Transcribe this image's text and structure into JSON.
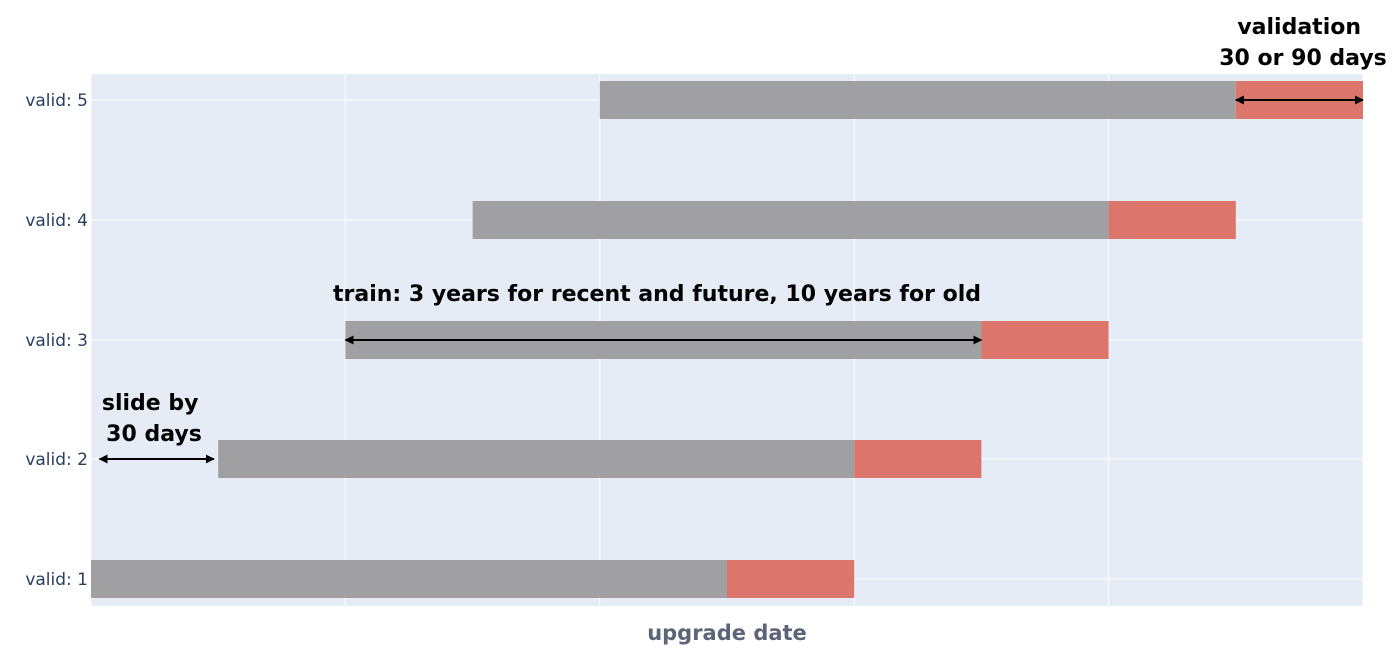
{
  "colors": {
    "background": "#ffffff",
    "plot_bg": "#e5ecf6",
    "grid": "#ffffff",
    "train": "#a0a0a2",
    "validation": "#dc756c",
    "arrow": "#000000",
    "tick_text": "#2a3f5f",
    "axis_title": "#5b6577"
  },
  "chart_data": {
    "type": "bar",
    "orientation": "horizontal",
    "xlabel": "upgrade date",
    "ylabel": "",
    "x_unit": "months",
    "xlim": [
      0,
      60
    ],
    "x_grid": [
      0,
      12,
      24,
      36,
      48,
      60
    ],
    "x_tick_labels_shown": false,
    "grid": true,
    "categories": [
      "valid: 1",
      "valid: 2",
      "valid: 3",
      "valid: 4",
      "valid: 5"
    ],
    "series": [
      {
        "name": "",
        "segment": "train",
        "color": "#a0a0a2",
        "values": [
          {
            "category": "valid: 1",
            "start": 0,
            "end": 30
          },
          {
            "category": "valid: 2",
            "start": 6,
            "end": 36
          },
          {
            "category": "valid: 3",
            "start": 12,
            "end": 42
          },
          {
            "category": "valid: 4",
            "start": 18,
            "end": 48
          },
          {
            "category": "valid: 5",
            "start": 24,
            "end": 54
          }
        ]
      },
      {
        "name": "",
        "segment": "validation",
        "color": "#dc756c",
        "values": [
          {
            "category": "valid: 1",
            "start": 30,
            "end": 36
          },
          {
            "category": "valid: 2",
            "start": 36,
            "end": 42
          },
          {
            "category": "valid: 3",
            "start": 42,
            "end": 48
          },
          {
            "category": "valid: 4",
            "start": 48,
            "end": 54
          },
          {
            "category": "valid: 5",
            "start": 54,
            "end": 60
          }
        ]
      }
    ],
    "annotations": {
      "validation": {
        "lines": [
          "validation",
          "30 or 90 days"
        ],
        "arrow": {
          "category": "valid: 5",
          "from": 54,
          "to": 60
        }
      },
      "train": {
        "lines": [
          "train: 3 years for recent and future, 10 years for old"
        ],
        "arrow": {
          "category": "valid: 3",
          "from": 12,
          "to": 42
        }
      },
      "slide": {
        "lines": [
          "slide by",
          "30 days"
        ],
        "arrow": {
          "category": "valid: 2",
          "from": 0.4,
          "to": 5.8
        }
      }
    }
  }
}
